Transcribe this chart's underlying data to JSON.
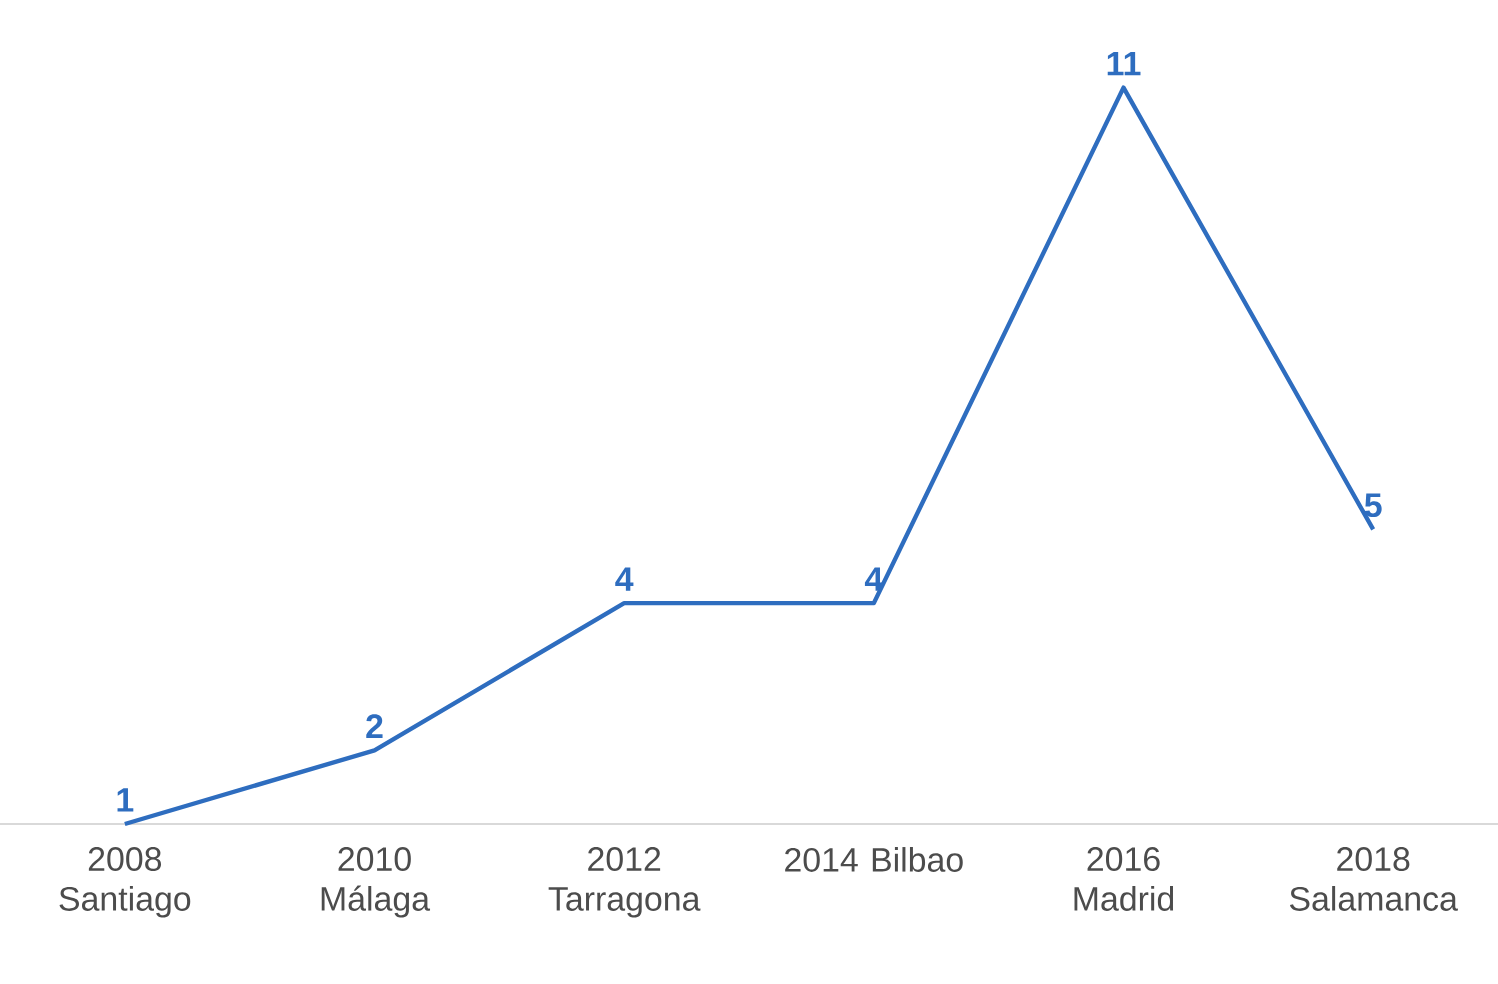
{
  "chart_data": {
    "type": "line",
    "categories": [
      "2008 Santiago",
      "2010 Málaga",
      "2012 Tarragona",
      "2014 Bilbao",
      "2016 Madrid",
      "2018 Salamanca"
    ],
    "values": [
      1,
      2,
      4,
      4,
      11,
      5
    ],
    "color": "#2e6dbf",
    "data_labels": true,
    "tick_labels": "x"
  }
}
